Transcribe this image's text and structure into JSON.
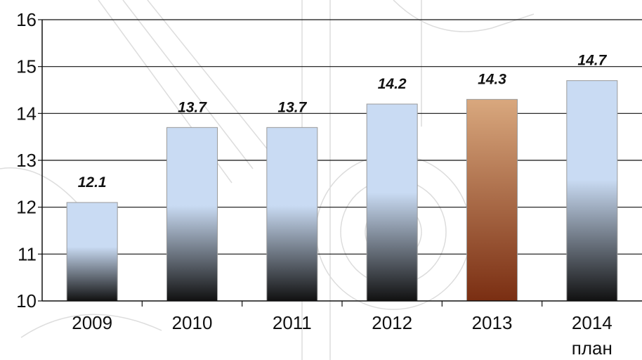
{
  "chart_data": {
    "type": "bar",
    "categories": [
      "2009",
      "2010",
      "2011",
      "2012",
      "2013",
      "2014"
    ],
    "category_sublabels": [
      "",
      "",
      "",
      "",
      "",
      "план"
    ],
    "values": [
      12.1,
      13.7,
      13.7,
      14.2,
      14.3,
      14.7
    ],
    "data_labels": [
      "12.1",
      "13.7",
      "13.7",
      "14.2",
      "14.3",
      "14.7"
    ],
    "highlighted_category": "2013",
    "ylim": [
      10,
      16
    ],
    "yticks": [
      "10",
      "11",
      "12",
      "13",
      "14",
      "15",
      "16"
    ],
    "grid": true,
    "title": "",
    "xlabel": "",
    "ylabel": "",
    "colors": {
      "bar_top": "#c9dbf3",
      "bar_bottom": "#111111",
      "highlight_top": "#d9a87e",
      "highlight_bottom": "#7a2e12",
      "grid": "#111111"
    }
  }
}
